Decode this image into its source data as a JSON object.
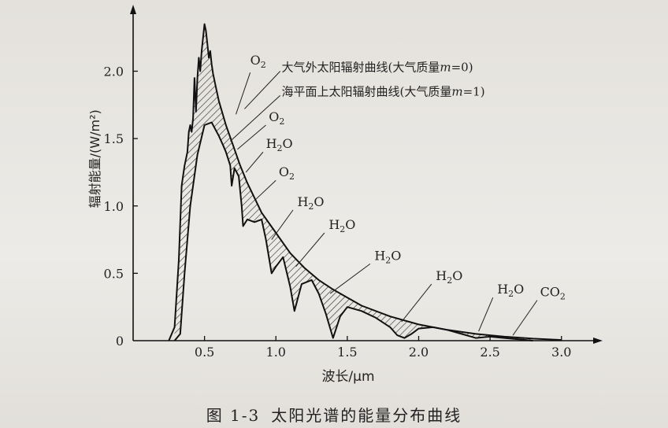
{
  "figure": {
    "number": "图 1-3",
    "title": "太阳光谱的能量分布曲线"
  },
  "chart_data": {
    "type": "area",
    "xlabel": "波长/μm",
    "ylabel": "辐射能量/(W/m²)",
    "xlim": [
      0.0,
      3.2
    ],
    "ylim": [
      0.0,
      2.4
    ],
    "x_ticks": [
      {
        "value": 0.5,
        "label": "0.5"
      },
      {
        "value": 1.0,
        "label": "1.0"
      },
      {
        "value": 1.5,
        "label": "1.5"
      },
      {
        "value": 2.0,
        "label": "2.0"
      },
      {
        "value": 2.5,
        "label": "2.5"
      },
      {
        "value": 3.0,
        "label": "3.0"
      }
    ],
    "y_ticks": [
      {
        "value": 0,
        "label": "0"
      },
      {
        "value": 0.5,
        "label": "0.5"
      },
      {
        "value": 1.0,
        "label": "1.0"
      },
      {
        "value": 1.5,
        "label": "1.5"
      },
      {
        "value": 2.0,
        "label": "2.0"
      }
    ],
    "series": [
      {
        "name": "大气外太阳辐射曲线(大气质量m=0)",
        "x": [
          0.25,
          0.29,
          0.32,
          0.34,
          0.36,
          0.38,
          0.39,
          0.4,
          0.41,
          0.42,
          0.43,
          0.44,
          0.45,
          0.46,
          0.47,
          0.48,
          0.49,
          0.5,
          0.51,
          0.52,
          0.53,
          0.54,
          0.55,
          0.56,
          0.58,
          0.6,
          0.65,
          0.7,
          0.75,
          0.8,
          0.9,
          1.0,
          1.1,
          1.2,
          1.3,
          1.4,
          1.5,
          1.6,
          1.8,
          2.0,
          2.2,
          2.4,
          2.6,
          2.8,
          3.0
        ],
        "y": [
          0.0,
          0.1,
          0.6,
          1.15,
          1.3,
          1.4,
          1.55,
          1.6,
          1.55,
          1.65,
          1.95,
          1.7,
          1.95,
          2.1,
          2.0,
          2.15,
          2.25,
          2.35,
          2.3,
          2.2,
          2.1,
          2.15,
          2.05,
          1.98,
          1.88,
          1.78,
          1.6,
          1.45,
          1.3,
          1.17,
          0.95,
          0.8,
          0.65,
          0.54,
          0.45,
          0.38,
          0.32,
          0.26,
          0.18,
          0.12,
          0.08,
          0.05,
          0.03,
          0.015,
          0.005
        ]
      },
      {
        "name": "海平面上太阳辐射曲线(大气质量m=1)",
        "x": [
          0.29,
          0.33,
          0.36,
          0.4,
          0.45,
          0.5,
          0.55,
          0.6,
          0.63,
          0.65,
          0.68,
          0.69,
          0.71,
          0.74,
          0.76,
          0.77,
          0.8,
          0.85,
          0.9,
          0.93,
          0.97,
          1.0,
          1.05,
          1.1,
          1.13,
          1.18,
          1.25,
          1.3,
          1.35,
          1.4,
          1.45,
          1.5,
          1.6,
          1.7,
          1.8,
          1.85,
          1.9,
          1.95,
          2.0,
          2.1,
          2.2,
          2.3,
          2.4,
          2.5,
          2.6,
          2.7,
          2.8
        ],
        "y": [
          0.0,
          0.05,
          0.5,
          1.0,
          1.38,
          1.6,
          1.62,
          1.52,
          1.45,
          1.4,
          1.3,
          1.15,
          1.28,
          1.22,
          1.0,
          0.85,
          0.9,
          0.88,
          0.9,
          0.75,
          0.5,
          0.55,
          0.62,
          0.4,
          0.22,
          0.42,
          0.45,
          0.35,
          0.2,
          0.02,
          0.18,
          0.25,
          0.22,
          0.17,
          0.1,
          0.04,
          0.02,
          0.05,
          0.09,
          0.1,
          0.08,
          0.05,
          0.02,
          0.03,
          0.02,
          0.01,
          0.0
        ]
      }
    ],
    "annotations": [
      {
        "label": "O2",
        "x": 0.82,
        "y": 2.05
      },
      {
        "label": "大气外太阳辐射曲线(大气质量m=0)",
        "x": 1.04,
        "y": 2.0
      },
      {
        "label": "海平面上太阳辐射曲线(大气质量m=1)",
        "x": 1.04,
        "y": 1.82
      },
      {
        "label": "O2",
        "x": 0.95,
        "y": 1.63
      },
      {
        "label": "H2O",
        "x": 0.93,
        "y": 1.43
      },
      {
        "label": "O2",
        "x": 1.02,
        "y": 1.22
      },
      {
        "label": "H2O",
        "x": 1.15,
        "y": 1.0
      },
      {
        "label": "H2O",
        "x": 1.37,
        "y": 0.83
      },
      {
        "label": "H2O",
        "x": 1.69,
        "y": 0.6
      },
      {
        "label": "H2O",
        "x": 2.12,
        "y": 0.45
      },
      {
        "label": "H2O",
        "x": 2.55,
        "y": 0.35
      },
      {
        "label": "CO2",
        "x": 2.85,
        "y": 0.33
      }
    ]
  }
}
